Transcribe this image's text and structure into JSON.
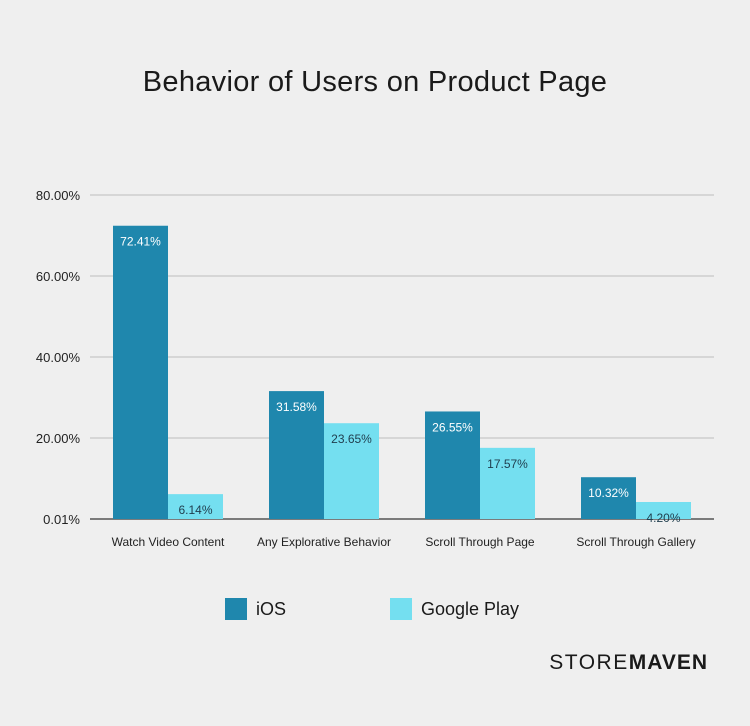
{
  "chart_data": {
    "type": "bar",
    "title": "Behavior of Users on Product Page",
    "categories": [
      "Watch Video Content",
      "Any Explorative Behavior",
      "Scroll Through Page",
      "Scroll Through Gallery"
    ],
    "series": [
      {
        "name": "iOS",
        "color": "#1f87ad",
        "values": [
          72.41,
          31.58,
          26.55,
          10.32
        ],
        "labels": [
          "72.41%",
          "31.58%",
          "26.55%",
          "10.32%"
        ]
      },
      {
        "name": "Google Play",
        "color": "#74dff0",
        "values": [
          6.14,
          23.65,
          17.57,
          4.2
        ],
        "labels": [
          "6.14%",
          "23.65%",
          "17.57%",
          "4.20%"
        ]
      }
    ],
    "yticks": [
      0.01,
      20,
      40,
      60,
      80
    ],
    "ytick_labels": [
      "0.01%",
      "20.00%",
      "40.00%",
      "60.00%",
      "80.00%"
    ],
    "ylim": [
      0,
      80
    ],
    "xlabel": "",
    "ylabel": "",
    "grid": true,
    "legend_position": "bottom"
  },
  "brand": {
    "light": "STORE",
    "bold": "MAVEN"
  }
}
